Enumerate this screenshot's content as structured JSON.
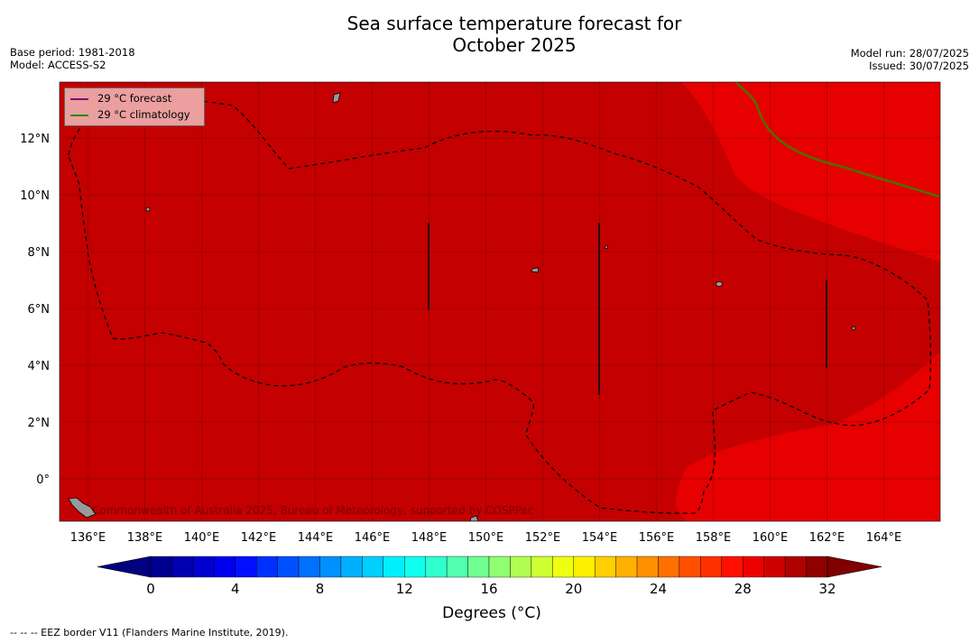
{
  "title_line1": "Sea surface temperature forecast for",
  "title_line2": "October 2025",
  "meta_left": {
    "base_period": "Base period: 1981-2018",
    "model": "Model: ACCESS-S2"
  },
  "meta_right": {
    "model_run": "Model run: 28/07/2025",
    "issued": "Issued: 30/07/2025"
  },
  "map": {
    "lon_range": [
      135,
      166
    ],
    "lat_range": [
      -1.5,
      14
    ],
    "lon_ticks": [
      "136°E",
      "138°E",
      "140°E",
      "142°E",
      "144°E",
      "146°E",
      "148°E",
      "150°E",
      "152°E",
      "154°E",
      "156°E",
      "158°E",
      "160°E",
      "162°E",
      "164°E"
    ],
    "lat_ticks": [
      "0°",
      "2°N",
      "4°N",
      "6°N",
      "8°N",
      "10°N",
      "12°N"
    ],
    "copyright": "Commonwealth of Australia 2025, Bureau of Meteorology, supported by COSPPac",
    "colors": {
      "sst_29_30": "#c40000",
      "sst_28_29": "#e60000",
      "forecast_line": "#7a1f7a",
      "climatology_line": "#2e7d32",
      "land": "#999999"
    }
  },
  "legend": {
    "forecast_label": "29 °C  forecast",
    "climatology_label": "29 °C  climatology",
    "forecast_color": "#800080",
    "climatology_color": "#228b22"
  },
  "colorbar": {
    "min": 0,
    "max": 32,
    "step": 1,
    "tick_labels": [
      "0",
      "4",
      "8",
      "12",
      "16",
      "20",
      "24",
      "28",
      "32"
    ],
    "label": "Degrees (°C)"
  },
  "footnote": "--  --  -- EEZ border V11 (Flanders Marine Institute, 2019)."
}
